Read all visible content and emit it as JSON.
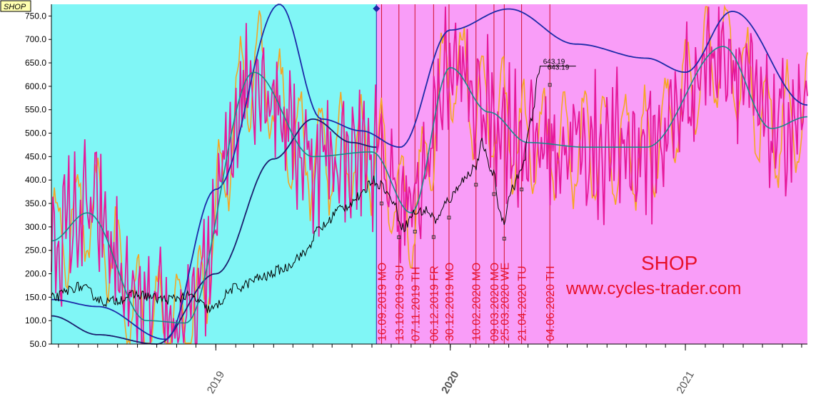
{
  "symbol_tag": "SHOP",
  "brand": {
    "symbol": "SHOP",
    "site": "www.cycles-trader.com"
  },
  "colors": {
    "past_background": "#80f6f6",
    "future_background": "#f99df8",
    "price": "#000000",
    "cycle_magenta": "#e6199a",
    "cycle_orange": "#f5a623",
    "cycle_teal": "#1a8a8a",
    "cycle_blue": "#1c2aa8",
    "cycle_navy": "#1a1f6e",
    "marker_line": "#d0102a",
    "text_red": "#e8102a"
  },
  "price_labels": [
    "643.19",
    "643.19"
  ],
  "chart_data": {
    "type": "line",
    "ylim": [
      50,
      775
    ],
    "yticks": [
      "50.0",
      "100.0",
      "150.0",
      "200.0",
      "250.0",
      "300.0",
      "350.0",
      "400.0",
      "450.0",
      "500.0",
      "550.0",
      "600.0",
      "650.0",
      "700.0",
      "750.0"
    ],
    "xlim": [
      "2018-04-20",
      "2021-07-10"
    ],
    "xticks": [
      {
        "label": "2019",
        "date": "2019-01-01",
        "bold": false
      },
      {
        "label": "2020",
        "date": "2020-01-01",
        "bold": true
      },
      {
        "label": "2021",
        "date": "2021-01-01",
        "bold": false
      }
    ],
    "forecast_start": "2019-09-08",
    "cycle_dates": [
      {
        "label": "16.09.2019 MO",
        "date": "2019-09-16"
      },
      {
        "label": "13.10.2019 SU",
        "date": "2019-10-13"
      },
      {
        "label": "07.11.2019 TH",
        "date": "2019-11-07"
      },
      {
        "label": "06.12.2019 FR",
        "date": "2019-12-06"
      },
      {
        "label": "30.12.2019 MO",
        "date": "2019-12-30"
      },
      {
        "label": "10.02.2020 MO",
        "date": "2020-02-10"
      },
      {
        "label": "09.03.2020 MO",
        "date": "2020-03-09"
      },
      {
        "label": "25.03.2020 WE",
        "date": "2020-03-25"
      },
      {
        "label": "21.04.2020 TU",
        "date": "2020-04-21"
      },
      {
        "label": "04.06.2020 TH",
        "date": "2020-06-04"
      }
    ],
    "series": [
      {
        "type": "price",
        "x": [
          "2018-04-20",
          "2018-06-01",
          "2018-07-15",
          "2018-09-01",
          "2018-10-15",
          "2018-11-20",
          "2018-12-24",
          "2019-02-01",
          "2019-03-15",
          "2019-04-15",
          "2019-05-15",
          "2019-06-15",
          "2019-07-15",
          "2019-08-15",
          "2019-09-01",
          "2019-09-16",
          "2019-10-01",
          "2019-10-20",
          "2019-11-07",
          "2019-11-25",
          "2019-12-10",
          "2019-12-31",
          "2020-01-20",
          "2020-02-10",
          "2020-02-20",
          "2020-03-01",
          "2020-03-09",
          "2020-03-18",
          "2020-03-25",
          "2020-04-05",
          "2020-04-21",
          "2020-05-05",
          "2020-05-20"
        ],
        "values": [
          148,
          172,
          140,
          155,
          145,
          152,
          124,
          170,
          192,
          210,
          240,
          300,
          340,
          365,
          400,
          390,
          360,
          300,
          330,
          335,
          315,
          360,
          400,
          430,
          480,
          430,
          410,
          330,
          315,
          380,
          420,
          520,
          643
        ]
      },
      {
        "type": "cycle_navy",
        "x": [
          "2018-04-20",
          "2018-07-01",
          "2018-10-01",
          "2019-01-01",
          "2019-04-01",
          "2019-06-01",
          "2019-08-01",
          "2019-09-08"
        ],
        "values": [
          110,
          70,
          50,
          200,
          445,
          530,
          480,
          470
        ]
      },
      {
        "type": "cycle_blue",
        "x": [
          "2018-04-20",
          "2018-07-01",
          "2018-10-15",
          "2019-01-01",
          "2019-04-10",
          "2019-06-15",
          "2019-08-15",
          "2019-10-15",
          "2020-01-01",
          "2020-04-01",
          "2020-07-15",
          "2020-11-01",
          "2021-01-01",
          "2021-03-15",
          "2021-07-10"
        ],
        "values": [
          145,
          130,
          60,
          380,
          775,
          530,
          505,
          470,
          720,
          765,
          690,
          660,
          630,
          760,
          560
        ]
      },
      {
        "type": "cycle_teal",
        "x": [
          "2018-04-20",
          "2018-06-15",
          "2018-09-15",
          "2018-11-15",
          "2019-03-01",
          "2019-06-01",
          "2019-09-01",
          "2019-11-01",
          "2020-01-01",
          "2020-03-01",
          "2020-05-01",
          "2020-08-01",
          "2020-11-01",
          "2021-03-01",
          "2021-05-15",
          "2021-07-10"
        ],
        "values": [
          270,
          330,
          100,
          95,
          630,
          450,
          460,
          330,
          640,
          545,
          480,
          470,
          470,
          685,
          510,
          535
        ]
      }
    ]
  }
}
